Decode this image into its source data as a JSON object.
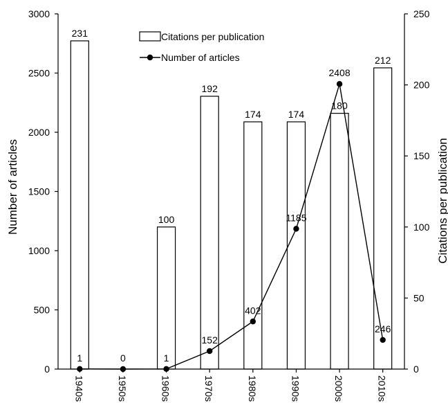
{
  "chart_data": {
    "type": "bar+line",
    "categories": [
      "1940s",
      "1950s",
      "1960s",
      "1970s",
      "1980s",
      "1990s",
      "2000s",
      "2010s"
    ],
    "series": [
      {
        "name": "Citations per publication",
        "type": "bar",
        "axis": "right",
        "values": [
          231,
          0,
          100,
          192,
          174,
          174,
          180,
          212
        ]
      },
      {
        "name": "Number of articles",
        "type": "line",
        "axis": "left",
        "values": [
          1,
          0,
          1,
          152,
          402,
          1185,
          2408,
          246
        ]
      }
    ],
    "ylabel_left": "Number of articles",
    "ylabel_right": "Citations per publication",
    "ylim_left": [
      0,
      3000
    ],
    "ylim_right": [
      0,
      250
    ],
    "yticks_left": [
      0,
      500,
      1000,
      1500,
      2000,
      2500,
      3000
    ],
    "yticks_right": [
      0,
      50,
      100,
      150,
      200,
      250
    ],
    "bar_labels": [
      "231",
      "",
      "100",
      "192",
      "174",
      "174",
      "180",
      "212"
    ],
    "line_labels": [
      "1",
      "0",
      "1",
      "152",
      "402",
      "1185",
      "2408",
      "246"
    ],
    "legend_position": "top-center",
    "grid": false,
    "colors": {
      "bar_fill": "#ffffff",
      "bar_stroke": "#000000",
      "line": "#000000"
    }
  }
}
